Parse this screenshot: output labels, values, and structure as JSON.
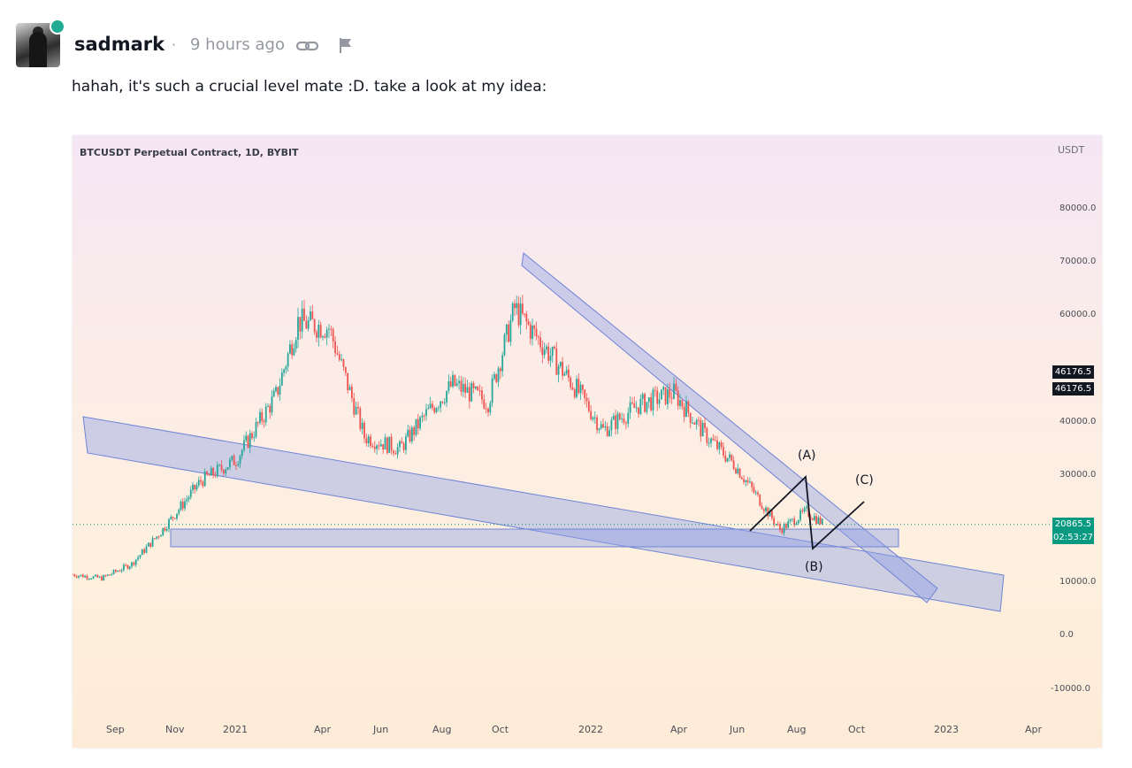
{
  "comment": {
    "username": "sadmark",
    "separator": "·",
    "timestamp": "9 hours ago",
    "text": "hahah, it's such a crucial level mate :D. take a look at my idea:",
    "online": true,
    "status_color": "#22ab94",
    "icons": [
      "link-icon",
      "flag-icon"
    ]
  },
  "chart": {
    "title": "BTCUSDT Perpetual Contract, 1D, BYBIT",
    "currency": "USDT",
    "y_ticks": [
      "80000.0",
      "70000.0",
      "60000.0",
      "40000.0",
      "30000.0",
      "10000.0",
      "0.0",
      "-10000.0"
    ],
    "x_ticks": [
      "Sep",
      "Nov",
      "2021",
      "Apr",
      "Jun",
      "Aug",
      "Oct",
      "2022",
      "Apr",
      "Jun",
      "Aug",
      "Oct",
      "2023",
      "Apr"
    ],
    "tags": {
      "hl1": "46176.5",
      "hl2": "46176.5",
      "price": "20865.5",
      "countdown": "02:53:27"
    },
    "tag_colors": {
      "highlight": "#131722",
      "price": "#089981"
    },
    "annotations": [
      "(A)",
      "(B)",
      "(C)"
    ],
    "up_color": "#26a69a",
    "down_color": "#ef5350",
    "zone_color": "#8c9fe6"
  },
  "chart_data": {
    "type": "candlestick",
    "title": "BTCUSDT Perpetual Contract, 1D, BYBIT",
    "xlabel": "",
    "ylabel": "USDT",
    "ylim": [
      -15000,
      90000
    ],
    "x": [
      "2020-08",
      "2020-09",
      "2020-10",
      "2020-11",
      "2020-12",
      "2021-01",
      "2021-02",
      "2021-03",
      "2021-04",
      "2021-05",
      "2021-06",
      "2021-07",
      "2021-08",
      "2021-09",
      "2021-10",
      "2021-11",
      "2021-12",
      "2022-01",
      "2022-02",
      "2022-03",
      "2022-04",
      "2022-05",
      "2022-06",
      "2022-07",
      "2022-08"
    ],
    "close": [
      11500,
      10800,
      13500,
      19500,
      29000,
      33000,
      45000,
      58800,
      57700,
      37300,
      35000,
      41500,
      47100,
      43800,
      61300,
      57000,
      46200,
      38500,
      43200,
      45500,
      37700,
      31800,
      19900,
      23300,
      20865
    ],
    "last_price": 20865.5,
    "annotations": [
      "(A)",
      "(B)",
      "(C)"
    ],
    "grid": false
  }
}
